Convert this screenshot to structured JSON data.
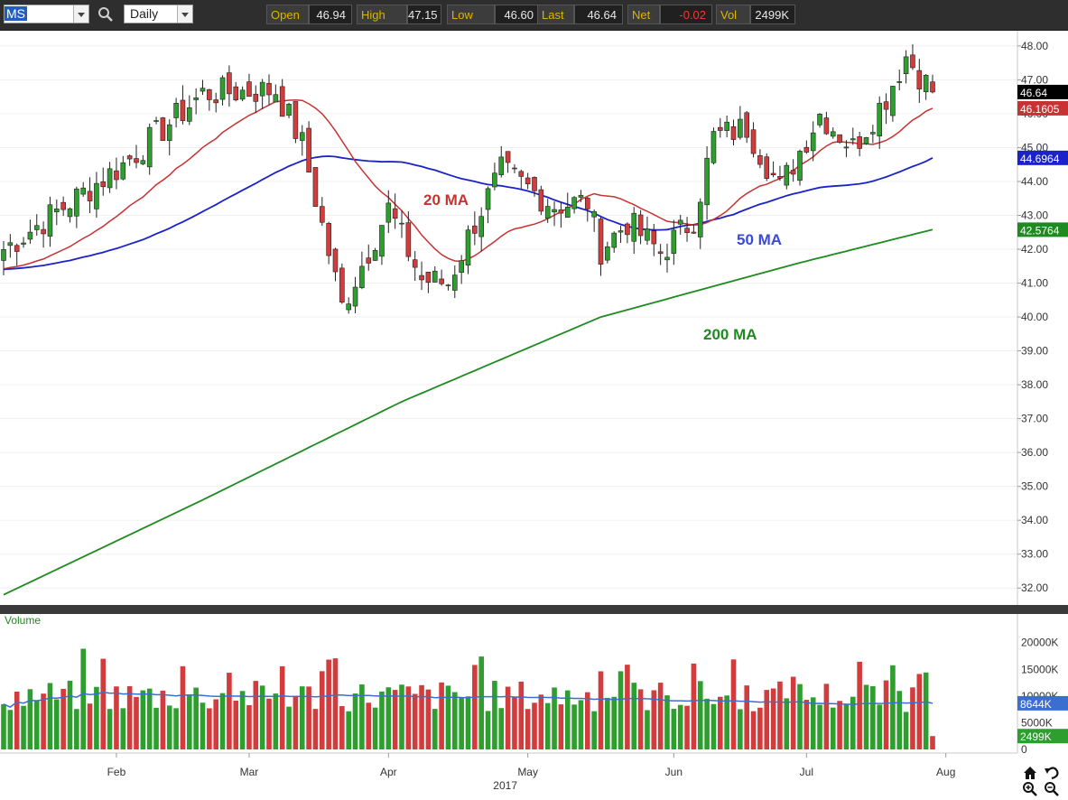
{
  "toolbar": {
    "symbol": "MS",
    "interval": "Daily",
    "quote": [
      {
        "label": "Open",
        "value": "46.94",
        "value_color": "#e8e8e8"
      },
      {
        "label": "High",
        "value": "47.15",
        "value_color": "#e8e8e8"
      },
      {
        "label": "Low",
        "value": "46.60",
        "value_color": "#e8e8e8"
      },
      {
        "label": "Last",
        "value": "46.64",
        "value_color": "#e8e8e8"
      },
      {
        "label": "Net",
        "value": "-0.02",
        "value_color": "#ff3030"
      },
      {
        "label": "Vol",
        "value": "2499K",
        "value_color": "#e8e8e8"
      }
    ]
  },
  "colors": {
    "up": "#2e9e2e",
    "down": "#d23c3c",
    "ma20": "#c83232",
    "ma50": "#1a22c8",
    "ma200": "#1f8a1f",
    "volume_ma": "#3a6fd0"
  },
  "chart_data": {
    "type": "candlestick",
    "title": "",
    "price_axis": {
      "ticks": [
        "48.00",
        "47.00",
        "46.00",
        "45.00",
        "44.00",
        "43.00",
        "42.00",
        "41.00",
        "40.00",
        "39.00",
        "38.00",
        "37.00",
        "36.00",
        "35.00",
        "34.00",
        "33.00",
        "32.00"
      ],
      "ylim": [
        31.5,
        48.45
      ],
      "last_tag": "46.64",
      "ma20_tag": "46.1605",
      "ma50_tag": "44.6964",
      "ma200_tag": "42.5764"
    },
    "x_axis": {
      "month_labels": [
        {
          "label": "Feb",
          "index": 17
        },
        {
          "label": "Mar",
          "index": 37
        },
        {
          "label": "Apr",
          "index": 58
        },
        {
          "label": "May",
          "index": 79
        },
        {
          "label": "Jun",
          "index": 101
        },
        {
          "label": "Jul",
          "index": 121
        },
        {
          "label": "Aug",
          "index": 142
        }
      ],
      "year_label": "2017"
    },
    "annotations": [
      "20 MA",
      "50 MA",
      "200 MA"
    ],
    "key_points": [
      {
        "index": 0,
        "close": 42.0
      },
      {
        "index": 18,
        "close": 44.5
      },
      {
        "index": 30,
        "close": 46.6
      },
      {
        "index": 41,
        "close": 46.7
      },
      {
        "index": 45,
        "close": 45.1
      },
      {
        "index": 51,
        "close": 40.3
      },
      {
        "index": 58,
        "close": 43.2
      },
      {
        "index": 63,
        "close": 41.1
      },
      {
        "index": 67,
        "close": 41.0
      },
      {
        "index": 71,
        "close": 42.8
      },
      {
        "index": 75,
        "close": 44.3
      },
      {
        "index": 83,
        "close": 43.3
      },
      {
        "index": 88,
        "close": 43.4
      },
      {
        "index": 90,
        "close": 42.0
      },
      {
        "index": 94,
        "close": 42.8
      },
      {
        "index": 99,
        "close": 41.9
      },
      {
        "index": 104,
        "close": 42.9
      },
      {
        "index": 107,
        "close": 45.3
      },
      {
        "index": 112,
        "close": 45.6
      },
      {
        "index": 117,
        "close": 43.8
      },
      {
        "index": 123,
        "close": 46.0
      },
      {
        "index": 128,
        "close": 45.0
      },
      {
        "index": 133,
        "close": 46.5
      },
      {
        "index": 136,
        "close": 47.7
      },
      {
        "index": 140,
        "close": 46.64
      }
    ],
    "ma200_points": [
      [
        0,
        31.8
      ],
      [
        30,
        34.6
      ],
      [
        60,
        37.5
      ],
      [
        90,
        40.0
      ],
      [
        120,
        41.6
      ],
      [
        140,
        42.58
      ]
    ],
    "volume": {
      "label": "Volume",
      "ticks": [
        "20000K",
        "15000K",
        "10000K",
        "5000K",
        "0"
      ],
      "ylim": [
        0,
        23000
      ],
      "ma_tag": "8644K",
      "last_tag": "2499K",
      "last_value": 2499
    }
  }
}
